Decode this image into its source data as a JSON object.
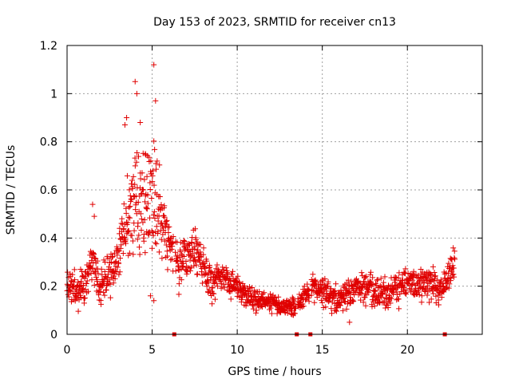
{
  "chart_data": {
    "type": "scatter",
    "title": "Day 153 of 2023, SRMTID for receiver cn13",
    "xlabel": "GPS time / hours",
    "ylabel": "SRMTID / TECUs",
    "xlim": [
      0,
      24.4
    ],
    "ylim": [
      0,
      1.2
    ],
    "grid": true,
    "xticks": [
      0,
      5,
      10,
      15,
      20
    ],
    "yticks": [
      0,
      0.2,
      0.4,
      0.6,
      0.8,
      1,
      1.2
    ],
    "xtick_labels": [
      "0",
      "5",
      "10",
      "15",
      "20"
    ],
    "ytick_labels": [
      "0",
      "0.2",
      "0.4",
      "0.6",
      "0.8",
      "1",
      "1.2"
    ],
    "marker_color": "#e00000",
    "gap_markers_x": [
      6.3,
      13.5,
      14.3,
      22.2
    ],
    "trend": [
      [
        0.0,
        0.23
      ],
      [
        0.5,
        0.17
      ],
      [
        1.0,
        0.2
      ],
      [
        1.5,
        0.3
      ],
      [
        2.0,
        0.17
      ],
      [
        2.5,
        0.25
      ],
      [
        3.0,
        0.32
      ],
      [
        3.5,
        0.45
      ],
      [
        4.0,
        0.55
      ],
      [
        4.5,
        0.55
      ],
      [
        5.0,
        0.58
      ],
      [
        5.5,
        0.5
      ],
      [
        6.0,
        0.38
      ],
      [
        6.5,
        0.3
      ],
      [
        7.0,
        0.33
      ],
      [
        7.5,
        0.36
      ],
      [
        8.0,
        0.3
      ],
      [
        8.5,
        0.22
      ],
      [
        9.0,
        0.24
      ],
      [
        9.5,
        0.22
      ],
      [
        10.0,
        0.2
      ],
      [
        10.5,
        0.16
      ],
      [
        11.0,
        0.15
      ],
      [
        11.5,
        0.14
      ],
      [
        12.0,
        0.13
      ],
      [
        12.5,
        0.12
      ],
      [
        13.0,
        0.12
      ],
      [
        13.5,
        0.11
      ],
      [
        14.0,
        0.17
      ],
      [
        14.5,
        0.2
      ],
      [
        15.0,
        0.18
      ],
      [
        15.5,
        0.16
      ],
      [
        16.0,
        0.15
      ],
      [
        16.5,
        0.17
      ],
      [
        17.0,
        0.2
      ],
      [
        17.5,
        0.2
      ],
      [
        18.0,
        0.18
      ],
      [
        18.5,
        0.16
      ],
      [
        19.0,
        0.17
      ],
      [
        19.5,
        0.19
      ],
      [
        20.0,
        0.22
      ],
      [
        20.5,
        0.2
      ],
      [
        21.0,
        0.22
      ],
      [
        21.5,
        0.2
      ],
      [
        22.0,
        0.18
      ],
      [
        22.5,
        0.26
      ],
      [
        22.8,
        0.3
      ]
    ],
    "spread": [
      [
        0.0,
        0.06
      ],
      [
        1.5,
        0.07
      ],
      [
        3.0,
        0.1
      ],
      [
        4.0,
        0.22
      ],
      [
        5.0,
        0.22
      ],
      [
        6.0,
        0.1
      ],
      [
        7.5,
        0.08
      ],
      [
        9.0,
        0.06
      ],
      [
        11.0,
        0.04
      ],
      [
        13.0,
        0.03
      ],
      [
        15.0,
        0.05
      ],
      [
        17.0,
        0.05
      ],
      [
        20.0,
        0.06
      ],
      [
        22.8,
        0.06
      ]
    ],
    "outliers": [
      [
        5.1,
        1.12
      ],
      [
        5.2,
        0.97
      ],
      [
        4.0,
        1.05
      ],
      [
        4.1,
        1.0
      ],
      [
        4.3,
        0.88
      ],
      [
        3.5,
        0.9
      ],
      [
        3.4,
        0.87
      ],
      [
        1.5,
        0.54
      ],
      [
        1.6,
        0.49
      ],
      [
        4.6,
        0.75
      ],
      [
        5.1,
        0.14
      ],
      [
        4.9,
        0.16
      ],
      [
        13.3,
        0.08
      ],
      [
        16.6,
        0.05
      ]
    ],
    "gaps": [
      [
        6.25,
        6.35
      ],
      [
        13.45,
        13.55
      ],
      [
        14.25,
        14.35
      ]
    ],
    "x_step": 0.015
  }
}
